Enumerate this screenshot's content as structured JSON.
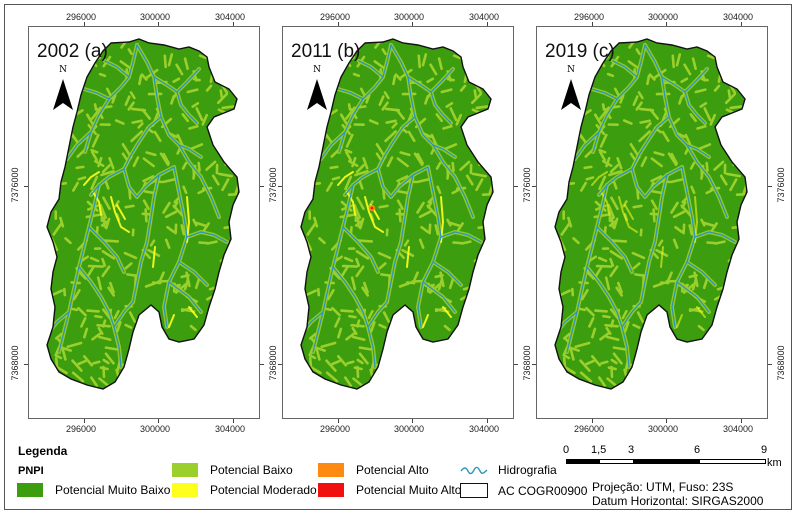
{
  "panels": [
    {
      "id": "a",
      "title": "2002 (a)",
      "has_alto_spot": false
    },
    {
      "id": "b",
      "title": "2011 (b)",
      "has_alto_spot": true
    },
    {
      "id": "c",
      "title": "2019 (c)",
      "has_alto_spot": false
    }
  ],
  "axes": {
    "x_ticks": [
      "296000",
      "300000",
      "304000"
    ],
    "y_ticks": [
      "7376000",
      "7368000"
    ]
  },
  "north_arrow": {
    "label": "N"
  },
  "legend": {
    "title": "Legenda",
    "subtitle": "PNPI",
    "items": [
      {
        "label": "Potencial Muito Baixo",
        "color": "#3c9d0e"
      },
      {
        "label": "Potencial Baixo",
        "color": "#9bcf2c"
      },
      {
        "label": "Potencial Moderado",
        "color": "#ffff1e"
      },
      {
        "label": "Potencial Alto",
        "color": "#ff8a12"
      },
      {
        "label": "Potencial Muito Alto",
        "color": "#f01010"
      },
      {
        "label": "Hidrografia",
        "color": "#2b97b8"
      },
      {
        "label": "AC COGR00900",
        "color": "#ffffff"
      }
    ]
  },
  "scale_bar": {
    "labels": [
      "0",
      "1,5",
      "3",
      "6",
      "9"
    ],
    "unit": "km"
  },
  "projection": {
    "line1": "Projeção: UTM, Fuso: 23S",
    "line2": "Datum Horizontal: SIRGAS2000"
  },
  "colors": {
    "muito_baixo": "#3c9d0e",
    "baixo": "#9bcf2c",
    "moderado": "#ffff1e",
    "alto": "#ff8a12",
    "muito_alto": "#f01010",
    "river": "#2b97b8",
    "outline": "#111111"
  }
}
